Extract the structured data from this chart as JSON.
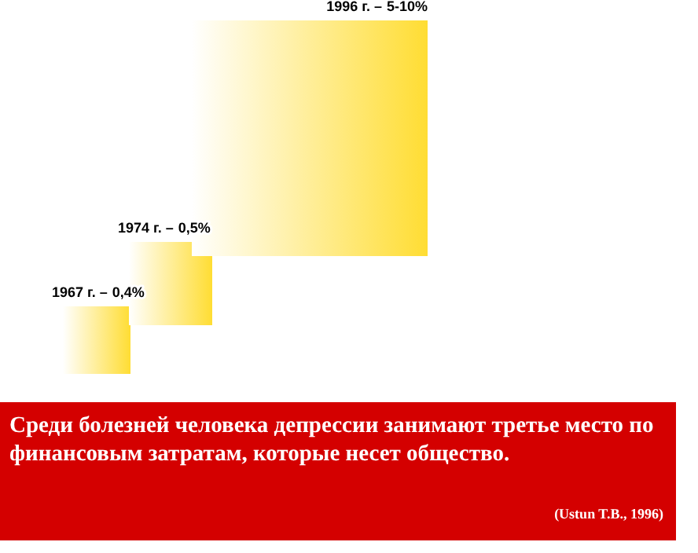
{
  "chart_data": {
    "type": "other",
    "title": "Среди болезней человека депрессии занимают третье место по финансовым затратам, которые несет общество.",
    "categories": [
      "1967 г. –",
      "1974 г. –",
      "1996 г. –"
    ],
    "values": [
      0.4,
      0.5,
      null
    ],
    "value_labels": [
      "0,4%",
      "0,5%",
      "5-10%"
    ],
    "colors": [
      "#ffdd33",
      "#ffdd33",
      "#ffdd33"
    ],
    "annotations": [
      "(Ustun T.B., 1996)"
    ]
  }
}
